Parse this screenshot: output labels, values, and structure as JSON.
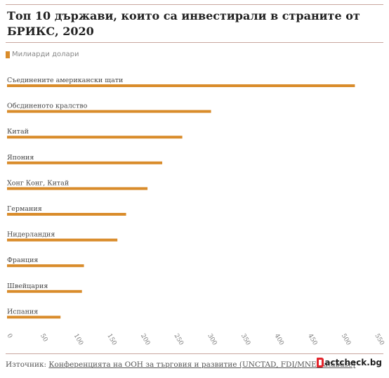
{
  "title": "Топ 10 държави, които са инвестирали в страните от БРИКС, 2020",
  "legend": {
    "label": "Милиарди долари",
    "color": "#d98c2b"
  },
  "source": {
    "prefix": "Източник:",
    "link_text": "Конференцията на ООН за търговия и развитие (UNCTAD, FDI/MNE database)"
  },
  "brand": {
    "text": "actcheck.bg"
  },
  "chart_data": {
    "type": "bar",
    "orientation": "horizontal",
    "categories": [
      "Съединените американски щати",
      "Обсдиненото кралство",
      "Китай",
      "Япония",
      "Хонг Конг, Китай",
      "Германия",
      "Нидерландия",
      "Франция",
      "Швейцария",
      "Испания"
    ],
    "series": [
      {
        "name": "Милиарди долари",
        "values": [
          520,
          305,
          262,
          232,
          210,
          178,
          165,
          115,
          112,
          80
        ]
      }
    ],
    "xlim": [
      0,
      550
    ],
    "xticks": [
      0,
      50,
      100,
      150,
      200,
      250,
      300,
      350,
      400,
      450,
      500,
      550
    ],
    "grid": false,
    "legend_position": "top-left",
    "color": "#d98c2b"
  }
}
